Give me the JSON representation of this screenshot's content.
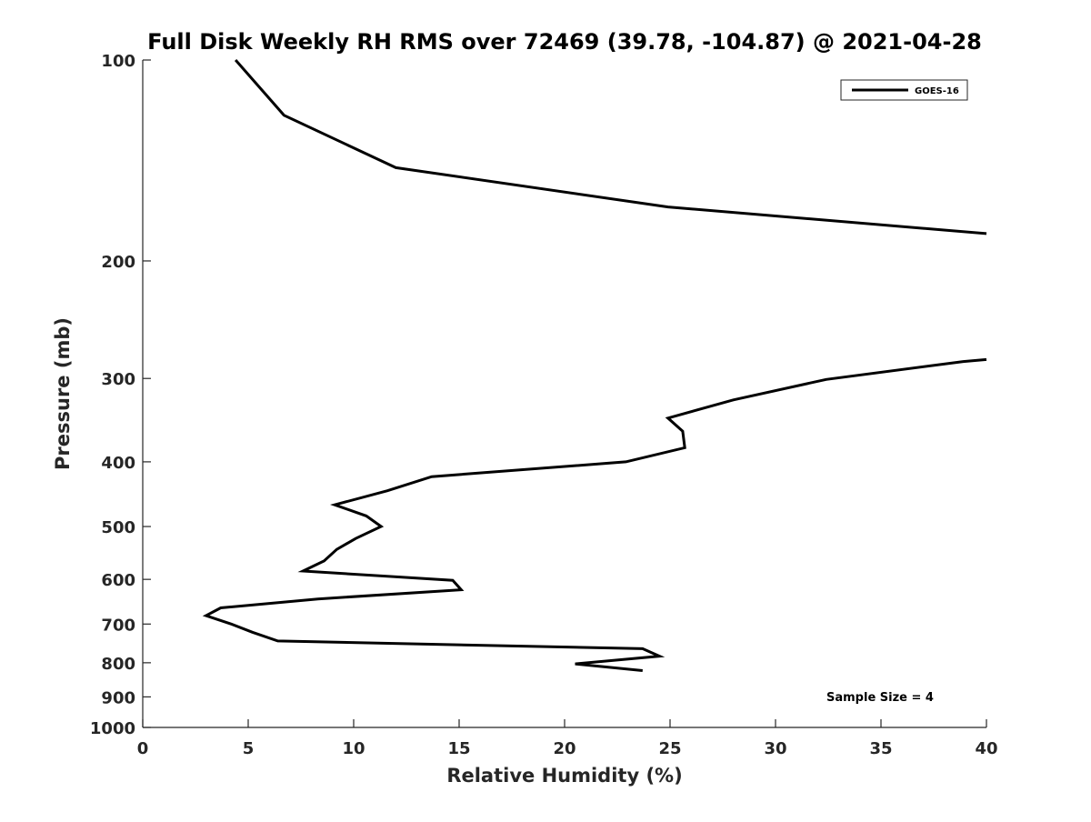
{
  "chart_data": {
    "type": "line",
    "title": "Full Disk Weekly RH RMS over 72469 (39.78, -104.87) @ 2021-04-28",
    "xlabel": "Relative Humidity (%)",
    "ylabel": "Pressure (mb)",
    "xlim": [
      0,
      40
    ],
    "ylim": [
      100,
      1000
    ],
    "y_scale": "log",
    "y_direction": "reversed",
    "grid": false,
    "x_ticks": [
      0,
      5,
      10,
      15,
      20,
      25,
      30,
      35,
      40
    ],
    "y_ticks": [
      100,
      200,
      300,
      400,
      500,
      600,
      700,
      800,
      900,
      1000
    ],
    "legend": {
      "placement": "top-right",
      "entries": [
        "GOES-16"
      ]
    },
    "annotations": [
      {
        "text": "Sample Size = 4",
        "placement": "bottom-right"
      }
    ],
    "series": [
      {
        "name": "GOES-16",
        "color": "#000000",
        "segments": [
          [
            [
              4.4,
              100
            ],
            [
              6.7,
              121
            ],
            [
              12.0,
              145
            ],
            [
              24.9,
              166
            ],
            [
              40.0,
              182
            ]
          ],
          [
            [
              40.0,
              281
            ],
            [
              38.9,
              283
            ],
            [
              32.4,
              301
            ],
            [
              28.0,
              323
            ],
            [
              24.9,
              344
            ],
            [
              25.6,
              360
            ],
            [
              25.7,
              381
            ],
            [
              22.9,
              400
            ],
            [
              13.7,
              421
            ],
            [
              11.6,
              442
            ],
            [
              9.1,
              464
            ],
            [
              10.6,
              482
            ],
            [
              11.3,
              500
            ],
            [
              10.1,
              521
            ],
            [
              9.2,
              541
            ],
            [
              8.6,
              563
            ],
            [
              7.6,
              583
            ],
            [
              14.7,
              602
            ],
            [
              15.1,
              622
            ],
            [
              8.3,
              642
            ],
            [
              3.7,
              662
            ],
            [
              3.0,
              680
            ],
            [
              4.2,
              700
            ],
            [
              5.2,
              720
            ],
            [
              6.4,
              742
            ],
            [
              23.7,
              762
            ],
            [
              24.5,
              782
            ],
            [
              20.5,
              803
            ],
            [
              23.7,
              822
            ]
          ]
        ]
      }
    ]
  }
}
